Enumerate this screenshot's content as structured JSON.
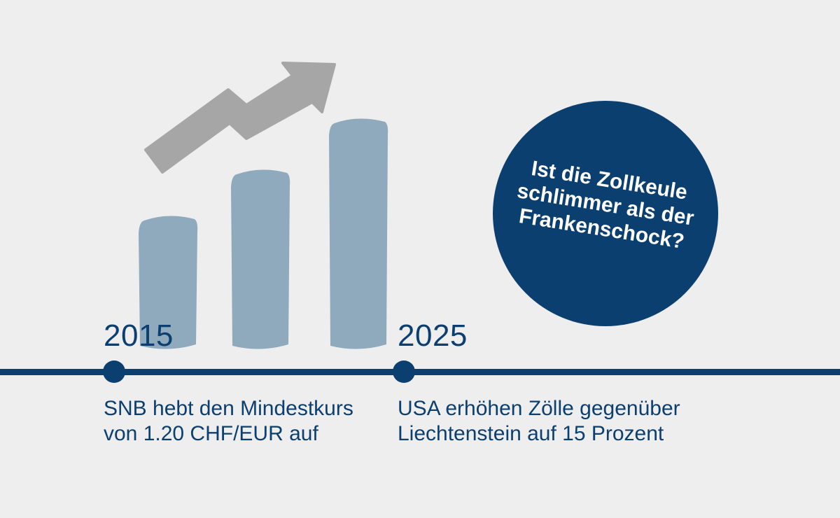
{
  "colors": {
    "background": "#eeeeee",
    "navy": "#0b3f70",
    "bar": "#8fa9bd",
    "arrow": "#a6a6a6",
    "badge_text": "#ffffff"
  },
  "illustration": {
    "bars": [
      {
        "level": 0.58
      },
      {
        "level": 0.78
      },
      {
        "level": 1.0
      }
    ],
    "arrow_icon": "rising-trend-arrow-icon"
  },
  "timeline": {
    "events": [
      {
        "year": "2015",
        "lines": [
          "SNB hebt den Mindestkurs",
          "von 1.20 CHF/EUR auf"
        ]
      },
      {
        "year": "2025",
        "lines": [
          "USA erhöhen Zölle gegenüber",
          "Liechtenstein auf 15 Prozent"
        ]
      }
    ]
  },
  "badge": {
    "lines": [
      "Ist die Zollkeule",
      "schlimmer als der",
      "Frankenschock?"
    ]
  }
}
